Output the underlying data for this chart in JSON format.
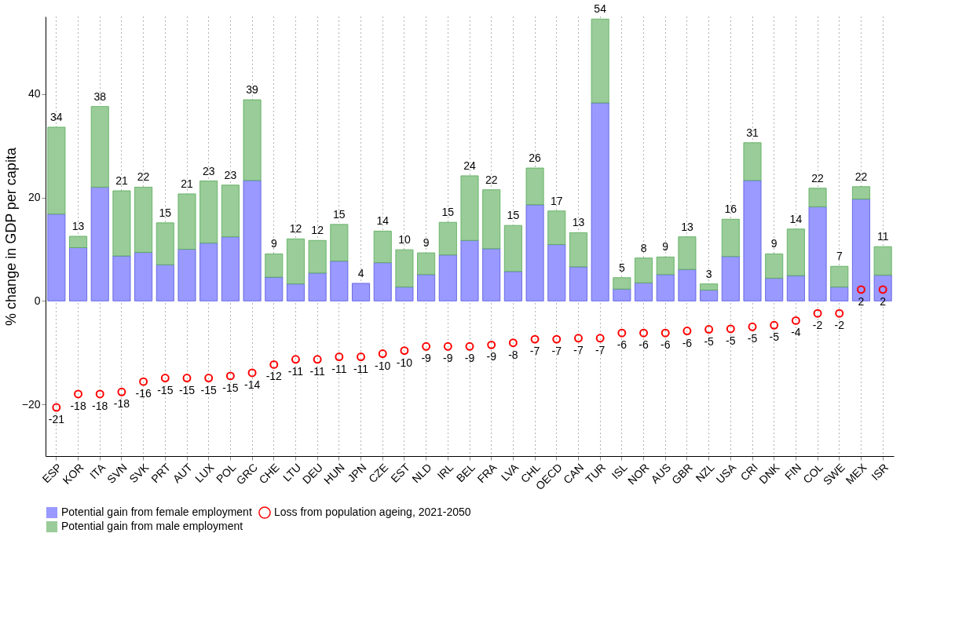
{
  "chart_data": {
    "type": "bar",
    "stacked": true,
    "ylabel": "% change in GDP per capita",
    "ylim": [
      -30,
      55
    ],
    "yticks": [
      -20,
      0,
      20,
      40
    ],
    "grid": "x",
    "legend": "bottom",
    "categories": [
      "ESP",
      "KOR",
      "ITA",
      "SVN",
      "SVK",
      "PRT",
      "AUT",
      "LUX",
      "POL",
      "GRC",
      "CHE",
      "LTU",
      "DEU",
      "HUN",
      "JPN",
      "CZE",
      "EST",
      "NLD",
      "IRL",
      "BEL",
      "FRA",
      "LVA",
      "CHL",
      "OECD",
      "CAN",
      "TUR",
      "ISL",
      "NOR",
      "AUS",
      "GBR",
      "NZL",
      "USA",
      "CRI",
      "DNK",
      "FIN",
      "COL",
      "SWE",
      "MEX",
      "ISR"
    ],
    "series": [
      {
        "name": "Loss from population ageing, 2021-2050",
        "type": "scatter",
        "marker": "circle",
        "color": "#ff0000",
        "values": [
          -20.6,
          -18.0,
          -18.0,
          -17.6,
          -15.6,
          -14.9,
          -14.9,
          -14.9,
          -14.5,
          -13.9,
          -12.3,
          -11.3,
          -11.3,
          -10.8,
          -10.8,
          -10.2,
          -9.6,
          -8.8,
          -8.8,
          -8.8,
          -8.5,
          -8.1,
          -7.4,
          -7.4,
          -7.2,
          -7.2,
          -6.2,
          -6.2,
          -6.2,
          -5.8,
          -5.5,
          -5.4,
          -5.0,
          -4.7,
          -3.8,
          -2.4,
          -2.4,
          2.2,
          2.2
        ],
        "value_labels": [
          "-21",
          "-18",
          "-18",
          "-18",
          "-16",
          "-15",
          "-15",
          "-15",
          "-15",
          "-14",
          "-12",
          "-11",
          "-11",
          "-11",
          "-11",
          "-10",
          "-10",
          "-9",
          "-9",
          "-9",
          "-9",
          "-8",
          "-7",
          "-7",
          "-7",
          "-7",
          "-6",
          "-6",
          "-6",
          "-6",
          "-5",
          "-5",
          "-5",
          "-5",
          "-4",
          "-2",
          "-2",
          "2",
          "2"
        ]
      },
      {
        "name": "Potential gain from female employment",
        "color": "#9999ff",
        "values": [
          16.8,
          10.3,
          22.0,
          8.7,
          9.4,
          7.0,
          10.0,
          11.2,
          12.4,
          23.3,
          4.6,
          3.3,
          5.4,
          7.7,
          3.4,
          7.4,
          2.7,
          5.1,
          8.9,
          11.7,
          10.1,
          5.7,
          18.6,
          10.9,
          6.6,
          38.3,
          2.3,
          3.5,
          5.1,
          6.1,
          2.1,
          8.6,
          23.3,
          4.4,
          4.9,
          18.2,
          2.7,
          19.7,
          5.0
        ]
      },
      {
        "name": "Potential gain from male employment",
        "color": "#99cc99",
        "values": [
          16.8,
          2.2,
          15.6,
          12.6,
          12.6,
          8.1,
          10.7,
          12.0,
          10.0,
          15.6,
          4.5,
          8.7,
          6.3,
          7.1,
          null,
          6.1,
          7.2,
          4.2,
          6.3,
          12.5,
          11.4,
          8.9,
          7.1,
          6.5,
          6.6,
          16.2,
          2.2,
          4.8,
          3.4,
          6.3,
          1.2,
          7.2,
          7.3,
          4.7,
          9.0,
          3.6,
          4.0,
          2.4,
          5.5
        ]
      }
    ],
    "totals": [
      "34",
      "13",
      "38",
      "21",
      "22",
      "15",
      "21",
      "23",
      "23",
      "39",
      "9",
      "12",
      "12",
      "15",
      "4",
      "14",
      "10",
      "9",
      "15",
      "24",
      "22",
      "15",
      "26",
      "17",
      "13",
      "54",
      "5",
      "8",
      "9",
      "13",
      "3",
      "16",
      "31",
      "9",
      "14",
      "22",
      "7",
      "22",
      "11"
    ]
  }
}
